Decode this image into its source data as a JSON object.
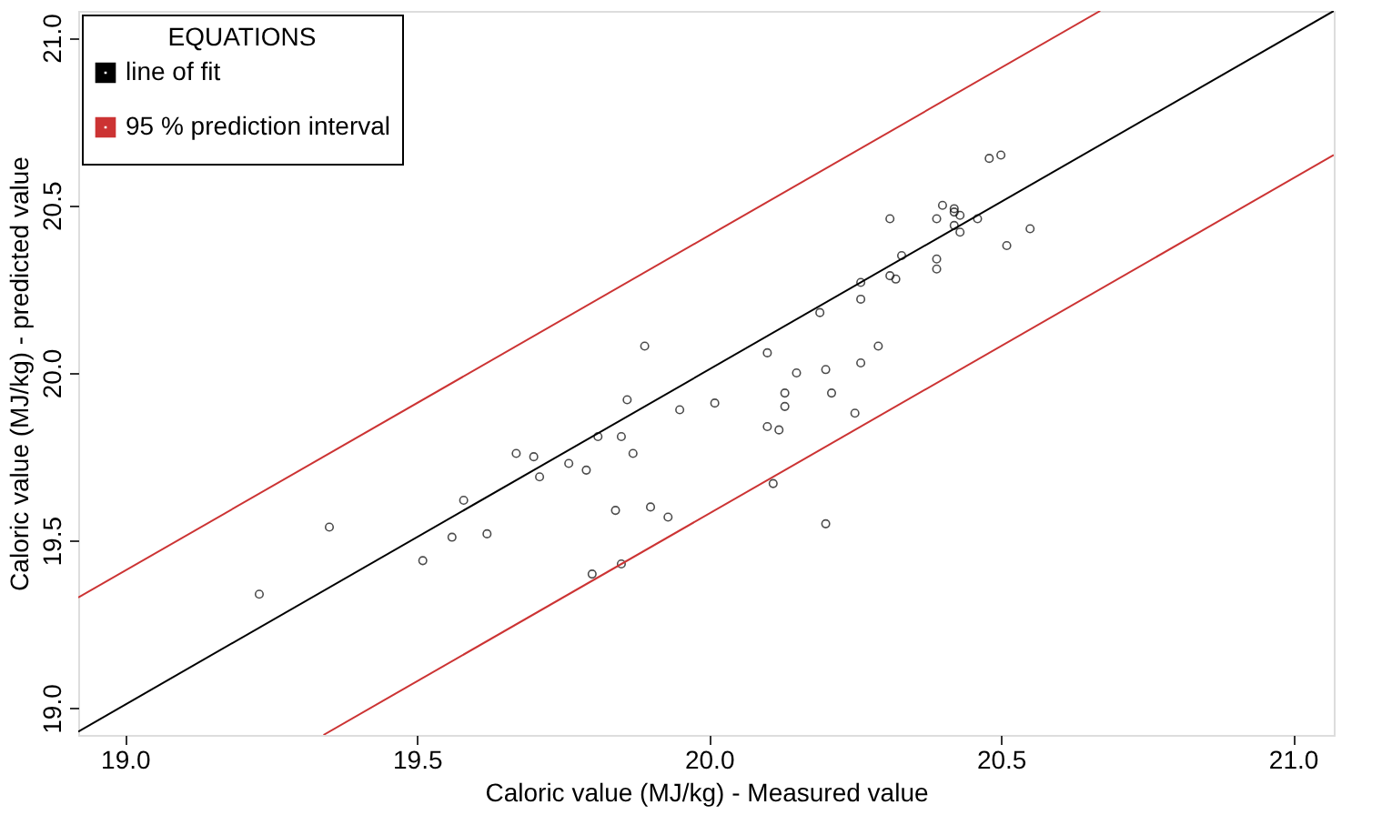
{
  "chart_data": {
    "type": "scatter",
    "xlabel": "Caloric value (MJ/kg) - Measured value",
    "ylabel": "Caloric value (MJ/kg) - predicted value",
    "legend_title": "EQUATIONS",
    "xlim": [
      18.92,
      21.07
    ],
    "ylim": [
      18.92,
      21.08
    ],
    "xticks": [
      {
        "value": 19,
        "label": "19.0"
      },
      19.5,
      {
        "value": 20,
        "label": "20.0"
      },
      20.5,
      {
        "value": 21,
        "label": "21.0"
      }
    ],
    "yticks": [
      {
        "value": 19,
        "label": "19.0"
      },
      19.5,
      {
        "value": 20,
        "label": "20.0"
      },
      20.5,
      {
        "value": 21,
        "label": "21.0"
      }
    ],
    "grid": false,
    "legend": "top left",
    "x": [
      19.23,
      19.35,
      19.51,
      19.56,
      19.58,
      19.62,
      19.67,
      19.7,
      19.71,
      19.76,
      19.79,
      19.8,
      19.81,
      19.84,
      19.85,
      19.85,
      19.86,
      19.87,
      19.89,
      19.9,
      19.93,
      19.95,
      20.01,
      20.1,
      20.1,
      20.12,
      20.11,
      20.13,
      20.13,
      20.15,
      20.19,
      20.2,
      20.21,
      20.2,
      20.25,
      20.26,
      20.26,
      20.26,
      20.29,
      20.31,
      20.31,
      20.32,
      20.33,
      20.39,
      20.39,
      20.39,
      20.4,
      20.42,
      20.42,
      20.43,
      20.42,
      20.43,
      20.46,
      20.48,
      20.5,
      20.51,
      20.55
    ],
    "series": [
      {
        "color": "#000000",
        "marker": "circle",
        "values": [
          19.34,
          19.54,
          19.44,
          19.51,
          19.62,
          19.52,
          19.76,
          19.75,
          19.69,
          19.73,
          19.71,
          19.4,
          19.81,
          19.59,
          19.81,
          19.43,
          19.92,
          19.76,
          20.08,
          19.6,
          19.57,
          19.89,
          19.91,
          20.06,
          19.84,
          19.83,
          19.67,
          19.94,
          19.9,
          20.0,
          20.18,
          20.01,
          19.94,
          19.55,
          19.88,
          20.22,
          20.27,
          20.03,
          20.08,
          20.29,
          20.46,
          20.28,
          20.35,
          20.31,
          20.34,
          20.46,
          20.5,
          20.49,
          20.48,
          20.47,
          20.44,
          20.42,
          20.46,
          20.64,
          20.65,
          20.38,
          20.43
        ]
      },
      {
        "type": "line",
        "name": "line of fit",
        "color": "#000000",
        "x": [
          18.92,
          21.07
        ],
        "values": [
          18.93,
          21.08
        ]
      },
      {
        "type": "line",
        "name": "95 % prediction interval",
        "color": "#cc3333",
        "x": [
          18.92,
          20.67
        ],
        "values": [
          19.33,
          21.08
        ]
      },
      {
        "type": "line",
        "color": "#cc3333",
        "x": [
          19.34,
          21.07
        ],
        "values": [
          18.92,
          20.65
        ]
      }
    ]
  }
}
